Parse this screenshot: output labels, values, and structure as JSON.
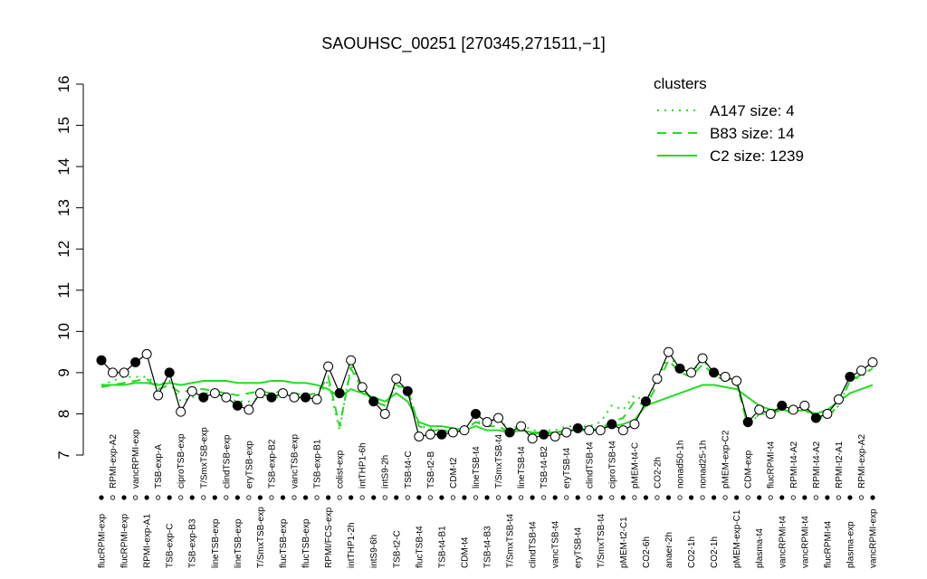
{
  "chart_data": {
    "type": "line",
    "title": "SAOUHSC_00251 [270345,271511,−1]",
    "categories": [
      "flucRPMI-exp",
      "RPMI-exp-A2",
      "flucRPMI-exp",
      "vancRPMI-exp",
      "RPMI-exp-A1",
      "TSB-exp-A",
      "TSB-exp-C",
      "ciproTSB-exp",
      "TSB-exp-B3",
      "T/SmxTSB-exp",
      "lineTSB-exp",
      "clindTSB-exp",
      "lineTSB-exp",
      "eryTSB-exp",
      "T/SmxTSB-exp",
      "TSB-exp-B2",
      "flucTSB-exp",
      "vancTSB-exp",
      "flucTSB-exp",
      "TSB-exp-B1",
      "RPMI/FCS-exp",
      "colist-exp",
      "intTHP1-2h",
      "intTHP1-6h",
      "intS9-6h",
      "intS9-2h",
      "TSB-t2-C",
      "TSB-t4-C",
      "flucTSB-t4",
      "TSB-t2-B",
      "TSB-t4-B1",
      "CDM-t2",
      "CDM-t4",
      "lineTSB-t4",
      "TSB-t4-B3",
      "T/SmxTSB-t4",
      "T/SmxTSB-t4",
      "lineTSB-t4",
      "clindTSB-t4",
      "TSB-t4-B2",
      "vancTSB-t4",
      "eryTSB-t4",
      "eryTSB-t4",
      "clindTSB-t4",
      "T/SmxTSB-t4",
      "ciproTSB-t4",
      "pMEM-t2-C1",
      "pMEM-t4-C",
      "CO2-6h",
      "CO2-2h",
      "anaer-2h",
      "nonad50-1h",
      "CO2-1h",
      "nonad25-1h",
      "CO2-1h",
      "pMEM-exp-C2",
      "pMEM-exp-C1",
      "CDM-exp",
      "plasma-t4",
      "flucRPMI-t4",
      "vancRPMI-t4",
      "RPMI-t4-A2",
      "vancRPMI-t4",
      "RPMI-t4-A2",
      "flucRPMI-t4",
      "RPMI-t2-A1",
      "plasma-exp",
      "RPMI-exp-A2",
      "vancRPMI-exp"
    ],
    "series": [
      {
        "color": "#000000",
        "markers": true,
        "values": [
          9.3,
          9.0,
          9.0,
          9.25,
          9.45,
          8.45,
          9.0,
          8.05,
          8.55,
          8.4,
          8.5,
          8.4,
          8.2,
          8.1,
          8.5,
          8.4,
          8.5,
          8.4,
          8.4,
          8.35,
          9.15,
          8.5,
          9.3,
          8.65,
          8.3,
          8.0,
          8.85,
          8.55,
          7.45,
          7.5,
          7.5,
          7.55,
          7.6,
          8.0,
          7.8,
          7.9,
          7.55,
          7.7,
          7.4,
          7.5,
          7.45,
          7.55,
          7.65,
          7.6,
          7.6,
          7.75,
          7.6,
          7.75,
          8.3,
          8.85,
          9.5,
          9.1,
          9.0,
          9.35,
          9.0,
          8.9,
          8.8,
          7.8,
          8.1,
          8.0,
          8.2,
          8.1,
          8.2,
          7.9,
          8.0,
          8.35,
          8.9,
          9.05,
          9.25
        ]
      },
      {
        "name": "A147 size: 4",
        "color": "#22dd22",
        "dash": "dotted",
        "values": [
          8.7,
          8.8,
          8.9,
          8.9,
          8.9,
          8.7,
          8.8,
          8.3,
          8.4,
          8.5,
          8.5,
          8.4,
          8.3,
          8.3,
          8.4,
          8.4,
          8.4,
          8.4,
          8.35,
          8.4,
          8.8,
          7.6,
          9.2,
          8.6,
          8.3,
          8.2,
          8.7,
          8.5,
          7.7,
          7.65,
          7.6,
          7.6,
          7.6,
          7.8,
          7.8,
          7.9,
          7.6,
          7.75,
          7.6,
          7.6,
          7.6,
          7.7,
          7.7,
          7.7,
          7.8,
          8.2,
          8.1,
          8.45,
          8.3,
          8.8,
          9.4,
          9.1,
          9.0,
          9.3,
          9.0,
          8.85,
          8.8,
          7.7,
          8.0,
          8.0,
          8.1,
          8.0,
          8.1,
          7.9,
          7.9,
          8.2,
          8.8,
          8.9,
          9.1
        ]
      },
      {
        "name": "B83 size: 14",
        "color": "#22dd22",
        "dash": "dashed",
        "values": [
          8.65,
          8.7,
          8.75,
          8.8,
          8.85,
          8.6,
          8.7,
          8.5,
          8.6,
          8.6,
          8.55,
          8.5,
          8.45,
          8.5,
          8.55,
          8.5,
          8.55,
          8.5,
          8.45,
          8.5,
          8.9,
          7.7,
          9.1,
          8.6,
          8.3,
          8.2,
          8.7,
          8.6,
          7.7,
          7.6,
          7.6,
          7.55,
          7.6,
          7.8,
          7.7,
          7.7,
          7.55,
          7.6,
          7.5,
          7.55,
          7.5,
          7.6,
          7.6,
          7.6,
          7.65,
          7.8,
          7.9,
          8.3,
          8.2,
          8.7,
          9.3,
          9.0,
          8.9,
          9.2,
          8.95,
          8.8,
          8.75,
          7.7,
          8.0,
          8.0,
          8.1,
          8.05,
          8.1,
          7.9,
          7.95,
          8.2,
          8.8,
          8.95,
          9.1
        ]
      },
      {
        "name": "C2 size: 1239",
        "color": "#22dd22",
        "dash": "solid",
        "values": [
          8.7,
          8.7,
          8.7,
          8.75,
          8.75,
          8.7,
          8.75,
          8.7,
          8.75,
          8.8,
          8.8,
          8.8,
          8.75,
          8.75,
          8.75,
          8.8,
          8.8,
          8.75,
          8.75,
          8.7,
          8.6,
          8.4,
          8.6,
          8.5,
          8.4,
          8.3,
          8.5,
          8.3,
          7.8,
          7.7,
          7.7,
          7.65,
          7.6,
          7.7,
          7.6,
          7.6,
          7.55,
          7.6,
          7.55,
          7.55,
          7.55,
          7.6,
          7.6,
          7.6,
          7.65,
          7.7,
          7.75,
          7.85,
          8.2,
          8.3,
          8.4,
          8.5,
          8.6,
          8.7,
          8.7,
          8.65,
          8.6,
          8.4,
          8.2,
          8.1,
          8.1,
          8.05,
          8.1,
          8.0,
          8.1,
          8.3,
          8.5,
          8.6,
          8.7
        ]
      }
    ],
    "ylim": [
      7,
      16
    ],
    "yticks": [
      7,
      8,
      9,
      10,
      11,
      12,
      13,
      14,
      15,
      16
    ],
    "legend_title": "clusters",
    "legend": "top-right"
  }
}
